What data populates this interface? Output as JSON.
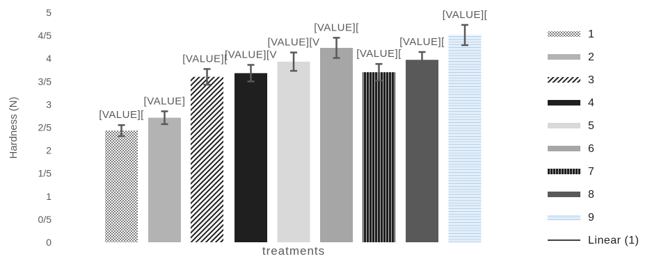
{
  "chart_data": {
    "type": "bar",
    "title": "",
    "xlabel": "treatments",
    "ylabel": "Hardness (N)",
    "ylim": [
      0,
      5
    ],
    "ytick_labels": [
      "0",
      "0/5",
      "1",
      "1/5",
      "2",
      "2/5",
      "3",
      "3/5",
      "4",
      "4/5",
      "5"
    ],
    "grid": false,
    "legend_position": "right",
    "categories": [
      "1",
      "2",
      "3",
      "4",
      "5",
      "6",
      "7",
      "8",
      "9"
    ],
    "values": [
      2.43,
      2.71,
      3.6,
      3.68,
      3.93,
      4.23,
      3.7,
      3.97,
      4.51
    ],
    "errors": [
      0.12,
      0.14,
      0.17,
      0.18,
      0.2,
      0.22,
      0.18,
      0.17,
      0.22
    ],
    "data_labels": [
      "[VALUE][",
      "[VALUE]",
      "[VALUE][",
      "[VALUE][V",
      "[VALUE][V",
      "[VALUE][",
      "[VALUE][",
      "[VALUE][",
      "[VALUE]["
    ],
    "legend": [
      {
        "name": "1",
        "pattern": "dots"
      },
      {
        "name": "2",
        "pattern": "light-gray"
      },
      {
        "name": "3",
        "pattern": "diagonal"
      },
      {
        "name": "4",
        "pattern": "black"
      },
      {
        "name": "5",
        "pattern": "very-light-gray"
      },
      {
        "name": "6",
        "pattern": "gray"
      },
      {
        "name": "7",
        "pattern": "vertical-lines"
      },
      {
        "name": "8",
        "pattern": "dark-gray"
      },
      {
        "name": "9",
        "pattern": "light-blue-lines"
      },
      {
        "name": "Linear (1)",
        "pattern": "line"
      }
    ],
    "colors": {
      "axis_text": "#595959",
      "error_bar": "#595959",
      "black": "#1f1f1f",
      "dark_gray": "#595959",
      "gray": "#a6a6a6",
      "light_gray": "#b3b3b3",
      "very_light_gray": "#d9d9d9",
      "light_blue": "#9dc3e6"
    }
  }
}
